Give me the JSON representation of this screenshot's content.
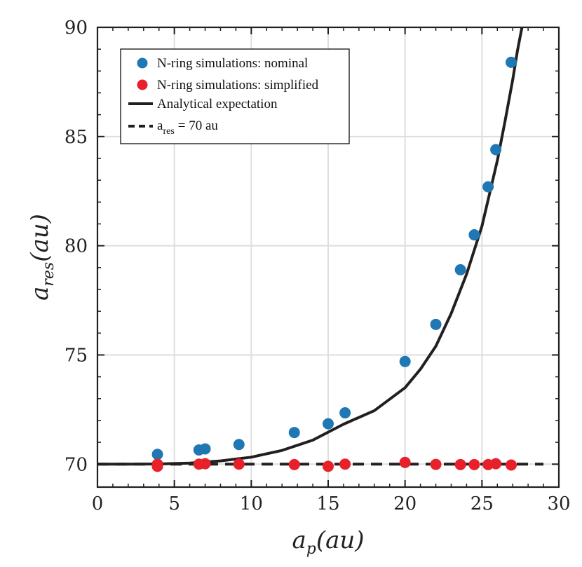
{
  "chart_data": {
    "type": "scatter",
    "title": "",
    "xlabel": {
      "base": "a",
      "sub": "p",
      "rest": "(au)"
    },
    "ylabel": {
      "base": "a",
      "sub": "res",
      "rest": "(au)"
    },
    "xlim": [
      0,
      30
    ],
    "ylim": [
      68.95,
      90
    ],
    "xticks": [
      0,
      5,
      10,
      15,
      20,
      25,
      30
    ],
    "yticks": [
      70,
      75,
      80,
      85,
      90
    ],
    "grid": true,
    "legend_position": "top-left",
    "series": [
      {
        "name": "N-ring simulations: nominal",
        "kind": "points",
        "color": "#1f77b4",
        "x": [
          3.9,
          6.6,
          7.0,
          9.2,
          12.8,
          15.0,
          16.1,
          20.0,
          22.0,
          23.6,
          24.5,
          25.4,
          25.9,
          26.9
        ],
        "y": [
          70.45,
          70.65,
          70.7,
          70.9,
          71.45,
          71.85,
          72.35,
          74.7,
          76.4,
          78.9,
          80.5,
          82.7,
          84.4,
          88.4
        ]
      },
      {
        "name": "N-ring simulations: simplified",
        "kind": "points",
        "color": "#e8202a",
        "x": [
          3.9,
          3.9,
          6.6,
          7.0,
          9.2,
          12.8,
          15.0,
          16.1,
          20.0,
          22.0,
          23.6,
          24.5,
          25.4,
          25.9,
          26.9
        ],
        "y": [
          69.9,
          70.0,
          70.0,
          70.02,
          70.0,
          69.98,
          69.9,
          70.0,
          70.08,
          69.99,
          69.98,
          69.98,
          69.98,
          70.02,
          69.96
        ]
      },
      {
        "name": "Analytical expectation",
        "kind": "curve",
        "color": "#231f20",
        "style": "solid",
        "x": [
          0,
          2,
          4,
          6,
          8,
          10,
          12,
          14,
          16,
          18,
          20,
          21,
          22,
          23,
          24,
          25,
          26,
          26.5,
          27,
          27.3,
          27.6
        ],
        "y": [
          70.0,
          70.0,
          70.01,
          70.05,
          70.15,
          70.32,
          70.63,
          71.1,
          71.83,
          72.45,
          73.5,
          74.35,
          75.4,
          76.9,
          78.7,
          80.9,
          83.9,
          85.7,
          87.6,
          88.9,
          90.0
        ]
      },
      {
        "name": "a",
        "name_sub": "res",
        "name_rest": "= 70 au",
        "kind": "curve",
        "color": "#231f20",
        "style": "dashed",
        "x": [
          0,
          29
        ],
        "y": [
          70,
          70
        ]
      }
    ]
  }
}
